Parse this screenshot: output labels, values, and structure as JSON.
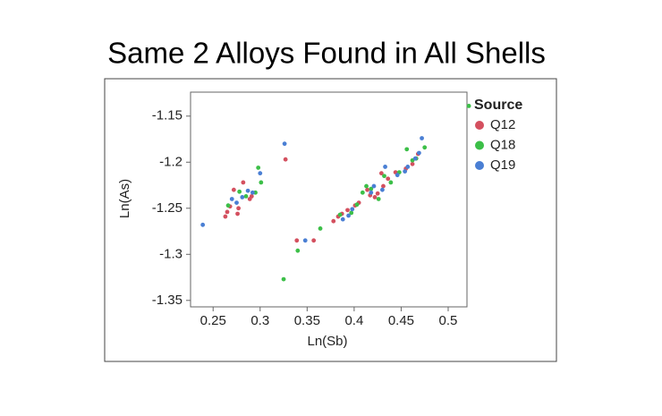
{
  "chart_data": {
    "type": "scatter",
    "title": "Same 2 Alloys Found in All Shells",
    "x_label": "Ln(Sb)",
    "y_label": "Ln(As)",
    "legend_title": "Source",
    "xlim": [
      0.226,
      0.52
    ],
    "ylim": [
      -1.357,
      -1.124
    ],
    "xticks": [
      0.25,
      0.3,
      0.35,
      0.4,
      0.45,
      0.5
    ],
    "yticks": [
      -1.15,
      -1.2,
      -1.25,
      -1.3,
      -1.35
    ],
    "series": [
      {
        "name": "Q12",
        "color": "#d4505f",
        "x": [
          0.263,
          0.265,
          0.268,
          0.272,
          0.276,
          0.277,
          0.282,
          0.289,
          0.291,
          0.327,
          0.339,
          0.357,
          0.378,
          0.383,
          0.387,
          0.393,
          0.401,
          0.405,
          0.414,
          0.417,
          0.422,
          0.425,
          0.429,
          0.431,
          0.436,
          0.444,
          0.455,
          0.462,
          0.468
        ],
        "values": [
          -1.259,
          -1.254,
          -1.248,
          -1.23,
          -1.256,
          -1.25,
          -1.222,
          -1.24,
          -1.237,
          -1.197,
          -1.285,
          -1.285,
          -1.264,
          -1.259,
          -1.256,
          -1.252,
          -1.247,
          -1.244,
          -1.23,
          -1.236,
          -1.238,
          -1.234,
          -1.212,
          -1.226,
          -1.218,
          -1.211,
          -1.207,
          -1.202,
          -1.191
        ]
      },
      {
        "name": "Q18",
        "color": "#3cbf48",
        "x": [
          0.266,
          0.278,
          0.285,
          0.298,
          0.301,
          0.295,
          0.325,
          0.34,
          0.364,
          0.385,
          0.397,
          0.403,
          0.409,
          0.413,
          0.418,
          0.426,
          0.432,
          0.439,
          0.448,
          0.456,
          0.462,
          0.466,
          0.475,
          0.522
        ],
        "values": [
          -1.247,
          -1.232,
          -1.237,
          -1.206,
          -1.222,
          -1.233,
          -1.327,
          -1.296,
          -1.272,
          -1.257,
          -1.255,
          -1.246,
          -1.233,
          -1.226,
          -1.229,
          -1.24,
          -1.215,
          -1.222,
          -1.211,
          -1.186,
          -1.198,
          -1.196,
          -1.184,
          -1.139
        ]
      },
      {
        "name": "Q19",
        "color": "#4a7fd4",
        "x": [
          0.239,
          0.27,
          0.275,
          0.281,
          0.287,
          0.292,
          0.3,
          0.326,
          0.348,
          0.388,
          0.394,
          0.398,
          0.418,
          0.421,
          0.43,
          0.433,
          0.446,
          0.454,
          0.457,
          0.465,
          0.469,
          0.472
        ],
        "values": [
          -1.268,
          -1.24,
          -1.244,
          -1.238,
          -1.231,
          -1.233,
          -1.212,
          -1.18,
          -1.285,
          -1.262,
          -1.258,
          -1.251,
          -1.233,
          -1.226,
          -1.23,
          -1.205,
          -1.214,
          -1.21,
          -1.205,
          -1.196,
          -1.19,
          -1.174
        ]
      }
    ]
  }
}
